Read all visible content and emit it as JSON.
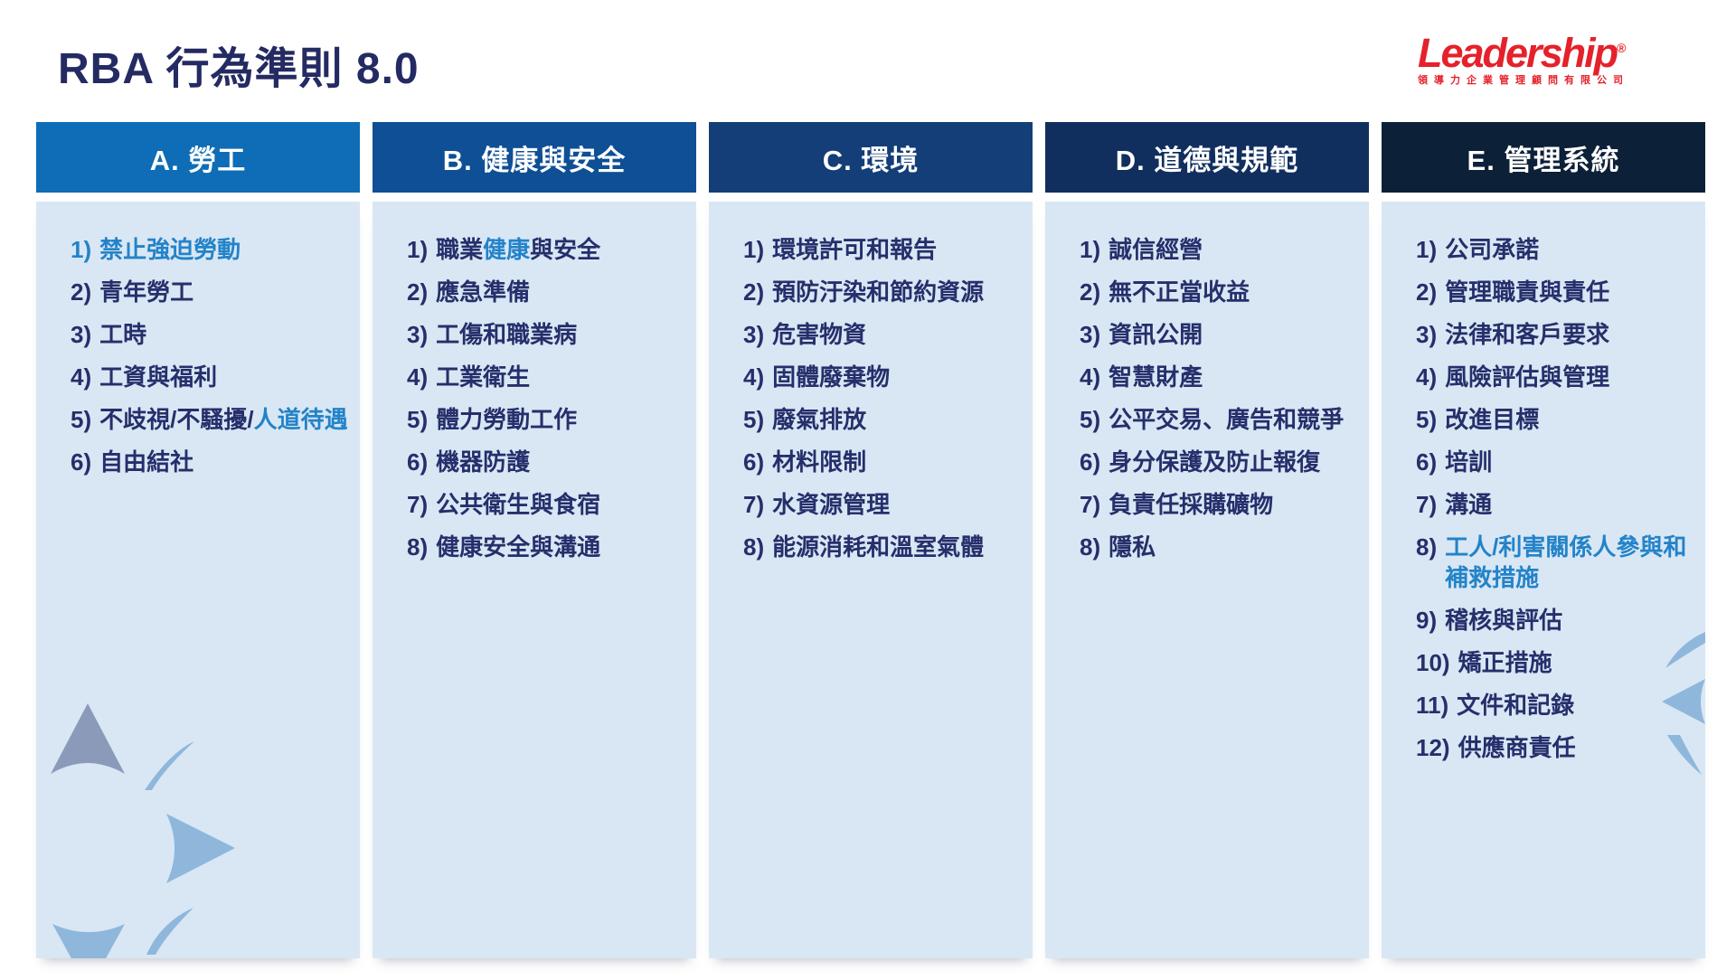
{
  "page": {
    "title": "RBA 行為準則 8.0"
  },
  "logo": {
    "brand": "Leadership",
    "registered": "®",
    "subtext": "領導力企業管理顧問有限公司",
    "color": "#e5212b"
  },
  "colors": {
    "title_text": "#242a62",
    "item_text": "#262f6b",
    "highlight_text": "#2383c9",
    "panel_background": "#d9e7f4",
    "decoration_gray_blue": "#8c9aba",
    "decoration_light_blue": "#8fb7dc"
  },
  "columns": [
    {
      "id": "A",
      "label": "A. 勞工",
      "header_color": "#0e6db6",
      "items": [
        {
          "num": "1)",
          "num_hl": true,
          "parts": [
            {
              "t": "禁止強迫勞動",
              "hl": true
            }
          ]
        },
        {
          "num": "2)",
          "num_hl": false,
          "parts": [
            {
              "t": "青年勞工",
              "hl": false
            }
          ]
        },
        {
          "num": "3)",
          "num_hl": false,
          "parts": [
            {
              "t": "工時",
              "hl": false
            }
          ]
        },
        {
          "num": "4)",
          "num_hl": false,
          "parts": [
            {
              "t": "工資與福利",
              "hl": false
            }
          ]
        },
        {
          "num": "5)",
          "num_hl": false,
          "parts": [
            {
              "t": "不歧視/不騷擾/",
              "hl": false
            },
            {
              "t": "人道待遇",
              "hl": true
            }
          ]
        },
        {
          "num": "6)",
          "num_hl": false,
          "parts": [
            {
              "t": "自由結社",
              "hl": false
            }
          ]
        }
      ]
    },
    {
      "id": "B",
      "label": "B. 健康與安全",
      "header_color": "#0e4f95",
      "items": [
        {
          "num": "1)",
          "num_hl": false,
          "parts": [
            {
              "t": "職業",
              "hl": false
            },
            {
              "t": "健康",
              "hl": true
            },
            {
              "t": "與安全",
              "hl": false
            }
          ]
        },
        {
          "num": "2)",
          "num_hl": false,
          "parts": [
            {
              "t": "應急準備",
              "hl": false
            }
          ]
        },
        {
          "num": "3)",
          "num_hl": false,
          "parts": [
            {
              "t": "工傷和職業病",
              "hl": false
            }
          ]
        },
        {
          "num": "4)",
          "num_hl": false,
          "parts": [
            {
              "t": "工業衛生",
              "hl": false
            }
          ]
        },
        {
          "num": "5)",
          "num_hl": false,
          "parts": [
            {
              "t": "體力勞動工作",
              "hl": false
            }
          ]
        },
        {
          "num": "6)",
          "num_hl": false,
          "parts": [
            {
              "t": "機器防護",
              "hl": false
            }
          ]
        },
        {
          "num": "7)",
          "num_hl": false,
          "parts": [
            {
              "t": "公共衛生與食宿",
              "hl": false
            }
          ]
        },
        {
          "num": "8)",
          "num_hl": false,
          "parts": [
            {
              "t": "健康安全與溝通",
              "hl": false
            }
          ]
        }
      ]
    },
    {
      "id": "C",
      "label": "C. 環境",
      "header_color": "#133e78",
      "items": [
        {
          "num": "1)",
          "num_hl": false,
          "parts": [
            {
              "t": "環境許可和報告",
              "hl": false
            }
          ]
        },
        {
          "num": "2)",
          "num_hl": false,
          "parts": [
            {
              "t": "預防汙染和節約資源",
              "hl": false
            }
          ]
        },
        {
          "num": "3)",
          "num_hl": false,
          "parts": [
            {
              "t": "危害物資",
              "hl": false
            }
          ]
        },
        {
          "num": "4)",
          "num_hl": false,
          "parts": [
            {
              "t": "固體廢棄物",
              "hl": false
            }
          ]
        },
        {
          "num": "5)",
          "num_hl": false,
          "parts": [
            {
              "t": "廢氣排放",
              "hl": false
            }
          ]
        },
        {
          "num": "6)",
          "num_hl": false,
          "parts": [
            {
              "t": "材料限制",
              "hl": false
            }
          ]
        },
        {
          "num": "7)",
          "num_hl": false,
          "parts": [
            {
              "t": "水資源管理",
              "hl": false
            }
          ]
        },
        {
          "num": "8)",
          "num_hl": false,
          "parts": [
            {
              "t": "能源消耗和溫室氣體",
              "hl": false
            }
          ]
        }
      ]
    },
    {
      "id": "D",
      "label": "D. 道德與規範",
      "header_color": "#112f5e",
      "items": [
        {
          "num": "1)",
          "num_hl": false,
          "parts": [
            {
              "t": "誠信經營",
              "hl": false
            }
          ]
        },
        {
          "num": "2)",
          "num_hl": false,
          "parts": [
            {
              "t": "無不正當收益",
              "hl": false
            }
          ]
        },
        {
          "num": "3)",
          "num_hl": false,
          "parts": [
            {
              "t": "資訊公開",
              "hl": false
            }
          ]
        },
        {
          "num": "4)",
          "num_hl": false,
          "parts": [
            {
              "t": "智慧財產",
              "hl": false
            }
          ]
        },
        {
          "num": "5)",
          "num_hl": false,
          "parts": [
            {
              "t": "公平交易、廣告和競爭",
              "hl": false
            }
          ]
        },
        {
          "num": "6)",
          "num_hl": false,
          "parts": [
            {
              "t": "身分保護及防止報復",
              "hl": false
            }
          ]
        },
        {
          "num": "7)",
          "num_hl": false,
          "parts": [
            {
              "t": "負責任採購礦物",
              "hl": false
            }
          ]
        },
        {
          "num": "8)",
          "num_hl": false,
          "parts": [
            {
              "t": "隱私",
              "hl": false
            }
          ]
        }
      ]
    },
    {
      "id": "E",
      "label": "E. 管理系統",
      "header_color": "#0c2038",
      "items": [
        {
          "num": "1)",
          "num_hl": false,
          "parts": [
            {
              "t": "公司承諾",
              "hl": false
            }
          ]
        },
        {
          "num": "2)",
          "num_hl": false,
          "parts": [
            {
              "t": "管理職責與責任",
              "hl": false
            }
          ]
        },
        {
          "num": "3)",
          "num_hl": false,
          "parts": [
            {
              "t": "法律和客戶要求",
              "hl": false
            }
          ]
        },
        {
          "num": "4)",
          "num_hl": false,
          "parts": [
            {
              "t": "風險評估與管理",
              "hl": false
            }
          ]
        },
        {
          "num": "5)",
          "num_hl": false,
          "parts": [
            {
              "t": "改進目標",
              "hl": false
            }
          ]
        },
        {
          "num": "6)",
          "num_hl": false,
          "parts": [
            {
              "t": "培訓",
              "hl": false
            }
          ]
        },
        {
          "num": "7)",
          "num_hl": false,
          "parts": [
            {
              "t": "溝通",
              "hl": false
            }
          ]
        },
        {
          "num": "8)",
          "num_hl": false,
          "parts": [
            {
              "t": "工人/利害關係人參與和補救措施",
              "hl": true
            }
          ]
        },
        {
          "num": "9)",
          "num_hl": false,
          "parts": [
            {
              "t": "稽核與評估",
              "hl": false
            }
          ]
        },
        {
          "num": "10)",
          "num_hl": false,
          "parts": [
            {
              "t": "矯正措施",
              "hl": false
            }
          ]
        },
        {
          "num": "11)",
          "num_hl": false,
          "parts": [
            {
              "t": "文件和記錄",
              "hl": false
            }
          ]
        },
        {
          "num": "12)",
          "num_hl": false,
          "parts": [
            {
              "t": "供應商責任",
              "hl": false
            }
          ]
        }
      ]
    }
  ]
}
